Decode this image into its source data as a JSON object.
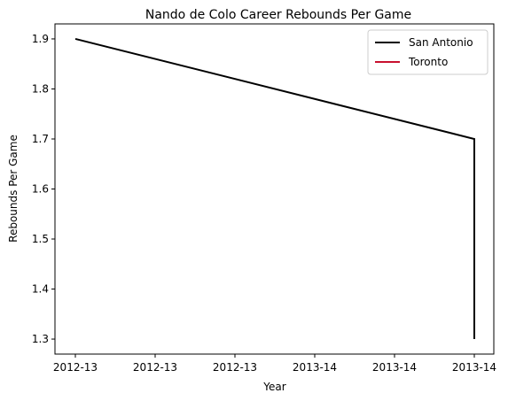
{
  "chart_data": {
    "type": "line",
    "title": "Nando de Colo Career Rebounds Per Game",
    "xlabel": "Year",
    "ylabel": "Rebounds Per Game",
    "x_tick_labels": [
      "2012-13",
      "2012-13",
      "2012-13",
      "2013-14",
      "2013-14",
      "2013-14"
    ],
    "y_ticks": [
      1.3,
      1.4,
      1.5,
      1.6,
      1.7,
      1.8,
      1.9
    ],
    "ylim": [
      1.27,
      1.93
    ],
    "grid": false,
    "legend_position": "top-right",
    "series": [
      {
        "name": "San Antonio",
        "color": "#000000",
        "points": [
          {
            "x": "2012-13",
            "y": 1.9
          },
          {
            "x": "2013-14",
            "y": 1.7
          },
          {
            "x": "2013-14",
            "y": 1.3
          }
        ]
      },
      {
        "name": "Toronto",
        "color": "#c8102e",
        "points": []
      }
    ]
  }
}
